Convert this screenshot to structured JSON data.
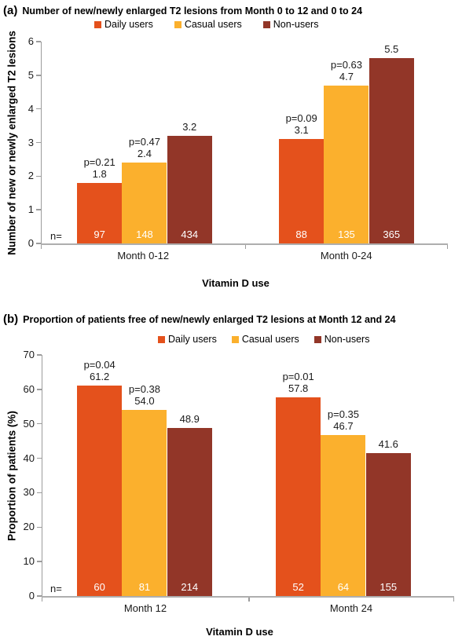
{
  "figure": {
    "background": "#ffffff",
    "axis_color": "#9c9c9c",
    "bar_label_color_inside": "#ffffff",
    "text_color": "#000000"
  },
  "chart_data": [
    {
      "type": "bar",
      "panel_label": "(a)",
      "title": "Number of new/newly enlarged T2 lesions from Month 0 to 12 and 0 to 24",
      "ylabel": "Number of new or newly enlarged T2 lesions",
      "xlabel": "Vitamin D use",
      "n_prefix": "n=",
      "ylim": [
        0,
        6
      ],
      "ytick_step": 1,
      "ytick_labels": [
        "0",
        "1",
        "2",
        "3",
        "4",
        "5",
        "6"
      ],
      "categories": [
        "Month 0-12",
        "Month 0-24"
      ],
      "legend_position": "top",
      "grid": false,
      "series": [
        {
          "name": "Daily users",
          "color": "#E4511C",
          "values": [
            1.8,
            3.1
          ],
          "value_labels": [
            "1.8",
            "3.1"
          ],
          "p_labels": [
            "p=0.21",
            "p=0.09"
          ],
          "n": [
            "97",
            "88"
          ]
        },
        {
          "name": "Casual users",
          "color": "#FBB02D",
          "values": [
            2.4,
            4.7
          ],
          "value_labels": [
            "2.4",
            "4.7"
          ],
          "p_labels": [
            "p=0.47",
            "p=0.63"
          ],
          "n": [
            "148",
            "135"
          ]
        },
        {
          "name": "Non-users",
          "color": "#923628",
          "values": [
            3.2,
            5.5
          ],
          "value_labels": [
            "3.2",
            "5.5"
          ],
          "p_labels": [
            null,
            null
          ],
          "n": [
            "434",
            "365"
          ]
        }
      ]
    },
    {
      "type": "bar",
      "panel_label": "(b)",
      "title": "Proportion of patients free of new/newly enlarged T2 lesions at Month 12 and 24",
      "ylabel": "Proportion of patients (%)",
      "xlabel": "Vitamin D use",
      "n_prefix": "n=",
      "ylim": [
        0,
        70
      ],
      "ytick_step": 10,
      "ytick_labels": [
        "0",
        "10",
        "20",
        "30",
        "40",
        "50",
        "60",
        "70"
      ],
      "categories": [
        "Month 12",
        "Month 24"
      ],
      "legend_position": "top",
      "grid": false,
      "series": [
        {
          "name": "Daily users",
          "color": "#E4511C",
          "values": [
            61.2,
            57.8
          ],
          "value_labels": [
            "61.2",
            "57.8"
          ],
          "p_labels": [
            "p=0.04",
            "p=0.01"
          ],
          "n": [
            "60",
            "52"
          ]
        },
        {
          "name": "Casual users",
          "color": "#FBB02D",
          "values": [
            54.0,
            46.7
          ],
          "value_labels": [
            "54.0",
            "46.7"
          ],
          "p_labels": [
            "p=0.38",
            "p=0.35"
          ],
          "n": [
            "81",
            "64"
          ]
        },
        {
          "name": "Non-users",
          "color": "#923628",
          "values": [
            48.9,
            41.6
          ],
          "value_labels": [
            "48.9",
            "41.6"
          ],
          "p_labels": [
            null,
            null
          ],
          "n": [
            "214",
            "155"
          ]
        }
      ]
    }
  ]
}
